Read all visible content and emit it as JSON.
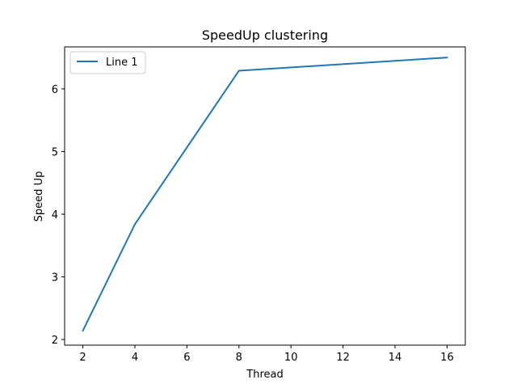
{
  "chart_data": {
    "type": "line",
    "title": "SpeedUp clustering",
    "xlabel": "Thread",
    "ylabel": "Speed Up",
    "xlim": [
      1.3,
      16.7
    ],
    "ylim": [
      1.91,
      6.67
    ],
    "xticks": [
      2,
      4,
      6,
      8,
      10,
      12,
      14,
      16
    ],
    "yticks": [
      2,
      3,
      4,
      5,
      6
    ],
    "grid": false,
    "legend_position": "top-left",
    "x": [
      2,
      4,
      8,
      16
    ],
    "series": [
      {
        "name": "Line 1",
        "color": "#1f77b4",
        "values": [
          2.14,
          3.84,
          6.29,
          6.5
        ]
      }
    ]
  }
}
